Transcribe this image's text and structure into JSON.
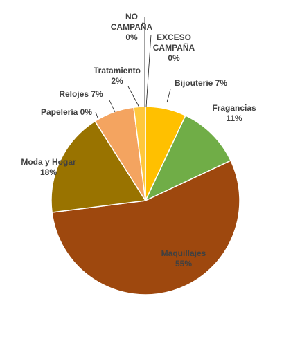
{
  "chart_data": {
    "type": "pie",
    "title": "",
    "start_angle_deg": 0,
    "direction": "clockwise",
    "slices": [
      {
        "name": "Bijouterie",
        "value": 7,
        "color": "#FFC000",
        "label_lines": [
          "Bijouterie 7%"
        ]
      },
      {
        "name": "Fragancias",
        "value": 11,
        "color": "#70AD47",
        "label_lines": [
          "Fragancias",
          "11%"
        ]
      },
      {
        "name": "Maquillajes",
        "value": 55,
        "color": "#9E480E",
        "label_lines": [
          "Maquillajes",
          "55%"
        ]
      },
      {
        "name": "Moda y Hogar",
        "value": 18,
        "color": "#997300",
        "label_lines": [
          "Moda y Hogar",
          "18%"
        ]
      },
      {
        "name": "Papelería",
        "value": 0,
        "color": "#A5A5A5",
        "label_lines": [
          "Papelería 0%"
        ]
      },
      {
        "name": "Relojes",
        "value": 7,
        "color": "#F4A460",
        "label_lines": [
          "Relojes 7%"
        ]
      },
      {
        "name": "Tratamiento",
        "value": 2,
        "color": "#FFC83D",
        "label_lines": [
          "Tratamiento",
          "2%"
        ]
      },
      {
        "name": "NO CAMPAÑA",
        "value": 0,
        "color": "#4472C4",
        "label_lines": [
          "NO",
          "CAMPAÑA",
          "0%"
        ]
      },
      {
        "name": "EXCESO CAMPAÑA",
        "value": 0,
        "color": "#5B9BD5",
        "label_lines": [
          "EXCESO",
          "CAMPAÑA",
          "0%"
        ]
      }
    ],
    "legend": "none"
  }
}
